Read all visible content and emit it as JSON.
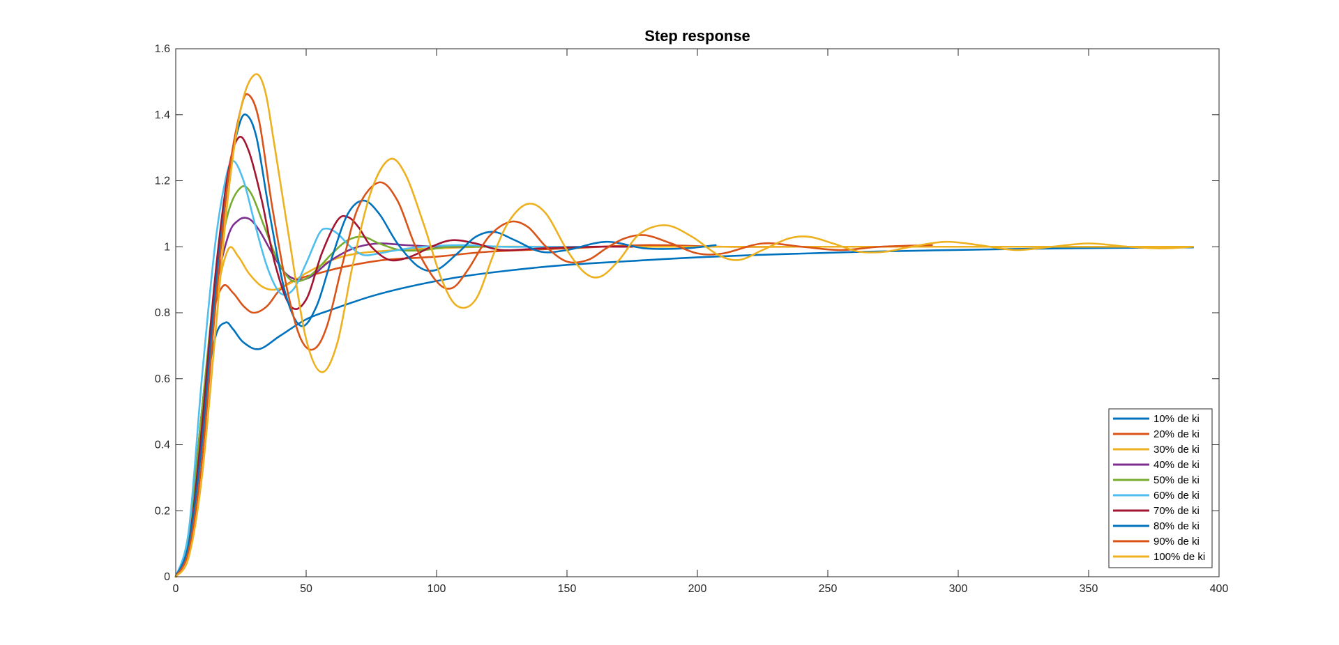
{
  "chart_data": {
    "type": "line",
    "title": "Step response",
    "xlabel": "",
    "ylabel": "",
    "xlim": [
      0,
      400
    ],
    "ylim": [
      0,
      1.6
    ],
    "xticks": [
      "0",
      "50",
      "100",
      "150",
      "200",
      "250",
      "300",
      "350",
      "400"
    ],
    "yticks": [
      "0",
      "0.2",
      "0.4",
      "0.6",
      "0.8",
      "1",
      "1.2",
      "1.4",
      "1.6"
    ],
    "grid": false,
    "legend_position": "bottom-right",
    "series": [
      {
        "name": "10% de ki",
        "color": "#0072BD",
        "x": [
          0,
          5,
          10,
          15,
          19,
          22,
          26,
          32,
          40,
          50,
          60,
          75,
          90,
          110,
          130,
          150,
          175,
          200,
          230,
          260,
          290,
          320,
          350,
          390
        ],
        "y": [
          0,
          0.12,
          0.48,
          0.72,
          0.77,
          0.75,
          0.71,
          0.69,
          0.73,
          0.78,
          0.81,
          0.85,
          0.88,
          0.91,
          0.93,
          0.945,
          0.957,
          0.968,
          0.977,
          0.984,
          0.989,
          0.993,
          0.996,
          0.998
        ]
      },
      {
        "name": "20% de ki",
        "color": "#D95319",
        "x": [
          0,
          5,
          10,
          14,
          18,
          22,
          26,
          30,
          35,
          40,
          46,
          55,
          65,
          80,
          100,
          120,
          150,
          180,
          210,
          240,
          270,
          290
        ],
        "y": [
          0,
          0.12,
          0.5,
          0.78,
          0.88,
          0.86,
          0.82,
          0.8,
          0.82,
          0.87,
          0.9,
          0.92,
          0.94,
          0.96,
          0.97,
          0.985,
          0.995,
          1.005,
          1.0,
          1.0,
          1.0,
          1.0
        ]
      },
      {
        "name": "30% de ki",
        "color": "#EDB120",
        "x": [
          0,
          5,
          10,
          15,
          20,
          24,
          28,
          33,
          38,
          44,
          50,
          60,
          70,
          85,
          100,
          120,
          150,
          180,
          210,
          240,
          270,
          300,
          330,
          360,
          390
        ],
        "y": [
          0,
          0.12,
          0.5,
          0.82,
          0.99,
          0.97,
          0.92,
          0.88,
          0.87,
          0.89,
          0.92,
          0.96,
          0.98,
          0.99,
          0.995,
          1.0,
          1.0,
          1.0,
          1.0,
          1.0,
          1.0,
          1.0,
          1.0,
          1.0,
          1.0
        ]
      },
      {
        "name": "40% de ki",
        "color": "#7E2F8E",
        "x": [
          0,
          5,
          10,
          15,
          20,
          24,
          28,
          32,
          37,
          42,
          47,
          52,
          58,
          64,
          70,
          78,
          88,
          100,
          110
        ],
        "y": [
          0,
          0.12,
          0.5,
          0.85,
          1.03,
          1.08,
          1.085,
          1.05,
          0.98,
          0.92,
          0.9,
          0.91,
          0.95,
          0.98,
          1.0,
          1.01,
          1.005,
          1.0,
          1.0
        ]
      },
      {
        "name": "50% de ki",
        "color": "#77AC30",
        "x": [
          0,
          5,
          10,
          15,
          20,
          25,
          29,
          34,
          39,
          44,
          49,
          54,
          60,
          66,
          72,
          78,
          86,
          95,
          105,
          115,
          125,
          140,
          160
        ],
        "y": [
          0,
          0.12,
          0.5,
          0.88,
          1.1,
          1.18,
          1.16,
          1.06,
          0.96,
          0.9,
          0.9,
          0.93,
          0.98,
          1.02,
          1.03,
          1.01,
          0.99,
          0.99,
          1.0,
          1.0,
          1.0,
          1.0,
          1.0
        ]
      },
      {
        "name": "60% de ki",
        "color": "#4DBEEE",
        "x": [
          0,
          5,
          10,
          15,
          19,
          22,
          26,
          30,
          35,
          40,
          45,
          50,
          55,
          58,
          62,
          67,
          72,
          78,
          85,
          95,
          110,
          125,
          140,
          160
        ],
        "y": [
          0,
          0.14,
          0.6,
          1.0,
          1.2,
          1.26,
          1.2,
          1.08,
          0.94,
          0.86,
          0.87,
          0.95,
          1.04,
          1.055,
          1.04,
          1.0,
          0.975,
          0.98,
          0.99,
          1.0,
          1.005,
          1.0,
          1.0,
          1.0
        ]
      },
      {
        "name": "70% de ki",
        "color": "#A2142F",
        "x": [
          0,
          5,
          10,
          15,
          20,
          24,
          28,
          33,
          38,
          44,
          50,
          56,
          62,
          66,
          70,
          75,
          82,
          90,
          98,
          106,
          115,
          125,
          140,
          160,
          175
        ],
        "y": [
          0,
          0.1,
          0.45,
          0.9,
          1.22,
          1.33,
          1.29,
          1.14,
          0.95,
          0.82,
          0.84,
          0.98,
          1.08,
          1.09,
          1.06,
          1.0,
          0.96,
          0.97,
          1.0,
          1.02,
          1.01,
          0.99,
          0.995,
          1.0,
          1.0
        ]
      },
      {
        "name": "80% de ki",
        "color": "#0072BD",
        "x": [
          0,
          5,
          10,
          15,
          20,
          24,
          27,
          31,
          36,
          42,
          48,
          54,
          60,
          66,
          72,
          78,
          85,
          93,
          100,
          108,
          115,
          122,
          130,
          140,
          150,
          165,
          180,
          195,
          207
        ],
        "y": [
          0,
          0.1,
          0.4,
          0.85,
          1.2,
          1.36,
          1.4,
          1.33,
          1.1,
          0.86,
          0.76,
          0.82,
          0.97,
          1.1,
          1.14,
          1.1,
          1.01,
          0.94,
          0.93,
          0.98,
          1.03,
          1.045,
          1.02,
          0.985,
          0.99,
          1.015,
          0.995,
          0.995,
          1.005
        ]
      },
      {
        "name": "90% de ki",
        "color": "#D95319",
        "x": [
          0,
          5,
          10,
          15,
          20,
          25,
          28,
          32,
          37,
          43,
          48,
          53,
          58,
          64,
          70,
          78,
          85,
          92,
          100,
          106,
          112,
          120,
          128,
          135,
          142,
          150,
          158,
          165,
          172,
          180,
          190,
          200,
          210,
          225,
          240,
          255,
          270,
          290
        ],
        "y": [
          0,
          0.08,
          0.35,
          0.8,
          1.2,
          1.42,
          1.46,
          1.38,
          1.12,
          0.86,
          0.72,
          0.69,
          0.76,
          0.95,
          1.12,
          1.195,
          1.14,
          1.0,
          0.895,
          0.875,
          0.93,
          1.03,
          1.075,
          1.06,
          1.0,
          0.955,
          0.96,
          0.995,
          1.025,
          1.035,
          1.01,
          0.98,
          0.98,
          1.01,
          1.0,
          0.99,
          1.0,
          1.005
        ]
      },
      {
        "name": "100% de ki",
        "color": "#EDB120",
        "x": [
          0,
          5,
          10,
          15,
          20,
          25,
          30,
          34,
          38,
          44,
          50,
          56,
          62,
          68,
          75,
          82,
          88,
          95,
          102,
          108,
          115,
          122,
          128,
          135,
          142,
          150,
          157,
          163,
          170,
          178,
          188,
          198,
          208,
          216,
          225,
          235,
          243,
          252,
          262,
          272,
          282,
          295,
          308,
          322,
          336,
          350,
          365,
          378,
          390
        ],
        "y": [
          0,
          0.06,
          0.3,
          0.72,
          1.15,
          1.42,
          1.52,
          1.48,
          1.3,
          1.0,
          0.72,
          0.62,
          0.71,
          0.95,
          1.17,
          1.265,
          1.22,
          1.07,
          0.9,
          0.82,
          0.84,
          0.98,
          1.08,
          1.13,
          1.1,
          0.99,
          0.92,
          0.91,
          0.96,
          1.04,
          1.065,
          1.03,
          0.975,
          0.96,
          0.99,
          1.025,
          1.03,
          1.01,
          0.985,
          0.985,
          1.0,
          1.015,
          1.005,
          0.99,
          1.0,
          1.01,
          1.0,
          0.995,
          1.0
        ]
      }
    ]
  }
}
